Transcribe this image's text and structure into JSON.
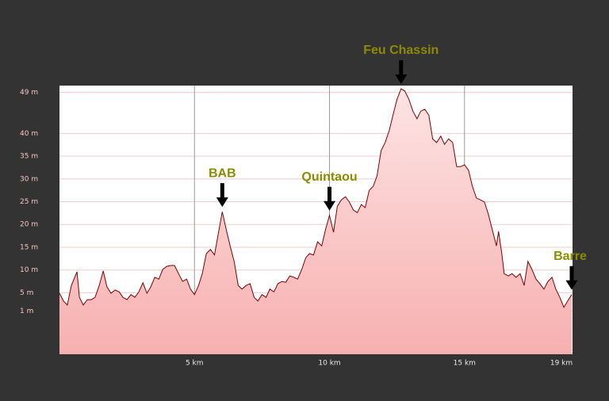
{
  "chart_data": {
    "type": "area",
    "x": [
      0,
      0.15,
      0.29,
      0.44,
      0.65,
      0.74,
      0.88,
      1.03,
      1.18,
      1.32,
      1.47,
      1.62,
      1.76,
      1.91,
      2.06,
      2.21,
      2.35,
      2.5,
      2.65,
      2.79,
      2.94,
      3.09,
      3.24,
      3.38,
      3.53,
      3.68,
      3.82,
      3.97,
      4.12,
      4.26,
      4.41,
      4.56,
      4.71,
      4.85,
      5.0,
      5.15,
      5.29,
      5.44,
      5.59,
      5.74,
      5.88,
      6.03,
      6.18,
      6.32,
      6.47,
      6.62,
      6.76,
      6.91,
      7.06,
      7.21,
      7.35,
      7.5,
      7.65,
      7.79,
      7.94,
      8.09,
      8.24,
      8.38,
      8.53,
      8.68,
      8.82,
      8.97,
      9.12,
      9.26,
      9.41,
      9.56,
      9.71,
      9.85,
      10.0,
      10.15,
      10.29,
      10.44,
      10.59,
      10.74,
      10.88,
      11.03,
      11.18,
      11.32,
      11.47,
      11.62,
      11.76,
      11.91,
      12.06,
      12.21,
      12.35,
      12.5,
      12.65,
      12.79,
      12.94,
      13.09,
      13.24,
      13.38,
      13.53,
      13.68,
      13.82,
      13.97,
      14.12,
      14.26,
      14.41,
      14.56,
      14.71,
      14.85,
      15.0,
      15.15,
      15.29,
      15.44,
      15.59,
      15.74,
      15.88,
      16.03,
      16.18,
      16.26,
      16.38,
      16.47,
      16.62,
      16.76,
      16.91,
      17.06,
      17.21,
      17.35,
      17.5,
      17.65,
      17.79,
      17.94,
      18.09,
      18.24,
      18.38,
      18.53,
      18.68,
      18.82,
      18.97
    ],
    "values": [
      4.9,
      3.2,
      2.3,
      6.6,
      9.6,
      4.0,
      2.3,
      3.5,
      3.5,
      4.0,
      6.6,
      9.8,
      6.3,
      4.9,
      5.6,
      5.2,
      4.0,
      3.5,
      4.6,
      4.0,
      5.2,
      7.2,
      4.9,
      6.3,
      8.4,
      8.0,
      10.1,
      10.8,
      11.0,
      11.0,
      9.2,
      7.5,
      8.0,
      5.8,
      4.6,
      6.6,
      9.2,
      13.6,
      14.5,
      13.3,
      17.9,
      22.8,
      18.8,
      15.3,
      11.9,
      6.6,
      5.8,
      6.6,
      7.0,
      4.0,
      3.2,
      4.6,
      4.0,
      5.8,
      5.2,
      7.0,
      7.5,
      7.3,
      8.7,
      8.4,
      8.0,
      10.1,
      12.7,
      13.6,
      13.3,
      16.2,
      15.3,
      18.8,
      22.0,
      18.3,
      24.0,
      25.4,
      26.1,
      24.9,
      23.2,
      22.6,
      24.4,
      23.7,
      27.5,
      28.4,
      30.7,
      36.2,
      38.0,
      40.6,
      44.0,
      47.5,
      49.8,
      49.3,
      47.5,
      44.9,
      43.2,
      44.9,
      45.3,
      44.0,
      38.8,
      38.0,
      39.4,
      37.6,
      38.8,
      38.0,
      32.7,
      32.7,
      33.1,
      31.9,
      28.4,
      25.8,
      25.4,
      24.9,
      22.3,
      18.8,
      15.3,
      18.5,
      13.6,
      9.2,
      8.7,
      9.2,
      8.4,
      9.2,
      6.6,
      11.9,
      10.1,
      8.0,
      7.0,
      5.8,
      7.5,
      8.4,
      5.8,
      4.0,
      1.8,
      3.2,
      4.6
    ],
    "color": "#800000",
    "fill": "#f7c4c4",
    "xlim": [
      0,
      19
    ],
    "ylim": [
      -8.5,
      50.5
    ],
    "xticks": [
      {
        "value": 5,
        "label": "5 km"
      },
      {
        "value": 10,
        "label": "10 km"
      },
      {
        "value": 15,
        "label": "15 km"
      },
      {
        "value": 19,
        "label": "19 km"
      }
    ],
    "yticks": [
      {
        "value": 49,
        "label": "49 m"
      },
      {
        "value": 40,
        "label": "40 m"
      },
      {
        "value": 35,
        "label": "35 m"
      },
      {
        "value": 30,
        "label": "30 m"
      },
      {
        "value": 25,
        "label": "25 m"
      },
      {
        "value": 20,
        "label": "20 m"
      },
      {
        "value": 15,
        "label": "15 m"
      },
      {
        "value": 10,
        "label": "10 m"
      },
      {
        "value": 5,
        "label": "5 m"
      },
      {
        "value": 1,
        "label": "1 m"
      }
    ],
    "grid": true,
    "annotations": [
      {
        "text": "BAB",
        "x": 6.03,
        "y": 22.8
      },
      {
        "text": "Quintaou",
        "x": 10.0,
        "y": 22.0
      },
      {
        "text": "Feu Chassin",
        "x": 12.65,
        "y": 49.8
      },
      {
        "text": "Barre",
        "x": 18.97,
        "y": 4.6
      }
    ]
  }
}
